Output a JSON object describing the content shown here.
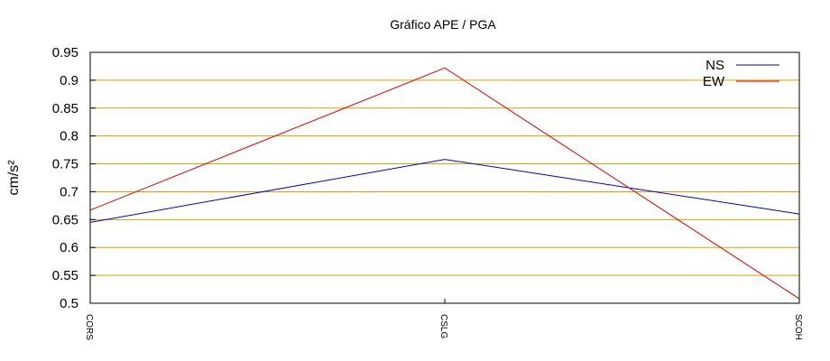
{
  "chart_data": {
    "type": "line",
    "title": "Gráfico  APE / PGA",
    "xlabel": "",
    "ylabel": "cm/s²",
    "categories": [
      "CORS",
      "CSLG",
      "SCOH"
    ],
    "series": [
      {
        "name": "NS",
        "values": [
          0.645,
          0.758,
          0.66
        ],
        "color": "#0000cc"
      },
      {
        "name": "EW",
        "values": [
          0.667,
          0.922,
          0.508
        ],
        "color": "#dd0000"
      }
    ],
    "ylim": [
      0.5,
      0.95
    ],
    "yticks": [
      "0.5",
      "0.55",
      "0.6",
      "0.65",
      "0.7",
      "0.75",
      "0.8",
      "0.85",
      "0.9",
      "0.95"
    ],
    "grid": true,
    "grid_color": "#d9a300",
    "legend": "top-right"
  }
}
